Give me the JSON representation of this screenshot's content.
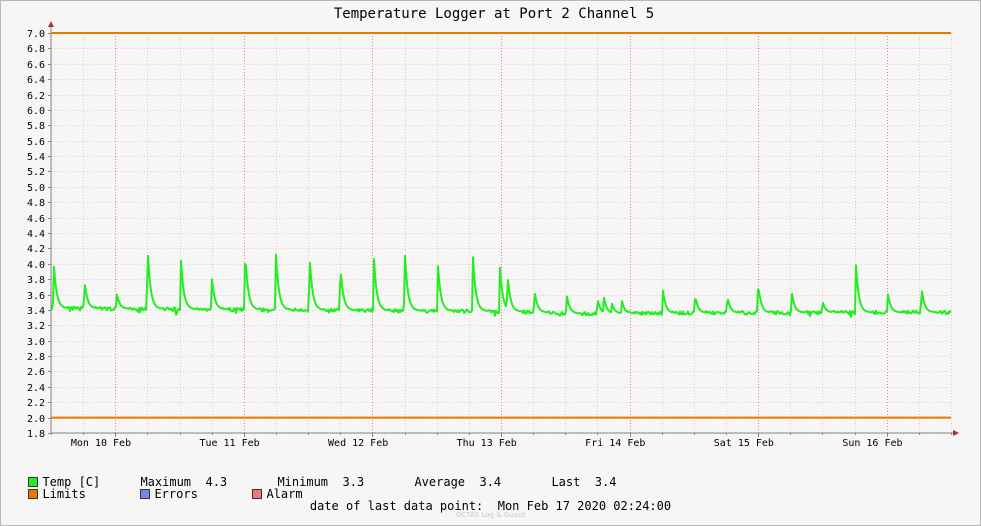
{
  "colors": {
    "temp": "#22ee22",
    "limits": "#ee7700",
    "errors": "#7788ee",
    "alarm": "#ee7777"
  },
  "chart_data": {
    "type": "line",
    "title": "Temperature Logger at Port 2 Channel 5",
    "xlabel": "",
    "ylabel": "",
    "ylim": [
      1.8,
      7.0
    ],
    "ytick_step": 0.2,
    "grid": true,
    "x_categories": [
      "Mon 10 Feb",
      "Tue 11 Feb",
      "Wed 12 Feb",
      "Thu 13 Feb",
      "Fri 14 Feb",
      "Sat 15 Feb",
      "Sun 16 Feb"
    ],
    "x_range_days": [
      0,
      7
    ],
    "limits": [
      {
        "name": "Limits",
        "value": 7.0
      },
      {
        "name": "Limits",
        "value": 2.0
      }
    ],
    "series": [
      {
        "name": "Temp [C]",
        "baseline_segments": [
          [
            0,
            3.42
          ],
          [
            2.7,
            3.39
          ],
          [
            3.5,
            3.38
          ],
          [
            4.1,
            3.35
          ],
          [
            5.0,
            3.36
          ],
          [
            7.0,
            3.37
          ]
        ],
        "peaks": [
          {
            "day": 0.02,
            "value": 4.05
          },
          {
            "day": 0.26,
            "value": 3.79
          },
          {
            "day": 0.51,
            "value": 3.63
          },
          {
            "day": 0.75,
            "value": 4.26
          },
          {
            "day": 1.01,
            "value": 4.07
          },
          {
            "day": 1.25,
            "value": 3.84
          },
          {
            "day": 1.51,
            "value": 4.17
          },
          {
            "day": 1.75,
            "value": 4.12
          },
          {
            "day": 2.01,
            "value": 4.15
          },
          {
            "day": 2.25,
            "value": 3.99
          },
          {
            "day": 2.51,
            "value": 4.13
          },
          {
            "day": 2.75,
            "value": 4.22
          },
          {
            "day": 3.01,
            "value": 3.97
          },
          {
            "day": 3.28,
            "value": 4.16
          },
          {
            "day": 3.49,
            "value": 4.01
          },
          {
            "day": 3.55,
            "value": 3.88
          },
          {
            "day": 3.76,
            "value": 3.66
          },
          {
            "day": 4.01,
            "value": 3.61
          },
          {
            "day": 4.25,
            "value": 3.55
          },
          {
            "day": 4.3,
            "value": 3.57
          },
          {
            "day": 4.36,
            "value": 3.5
          },
          {
            "day": 4.44,
            "value": 3.52
          },
          {
            "day": 4.76,
            "value": 3.65
          },
          {
            "day": 5.01,
            "value": 3.59
          },
          {
            "day": 5.26,
            "value": 3.58
          },
          {
            "day": 5.5,
            "value": 3.75
          },
          {
            "day": 5.76,
            "value": 3.65
          },
          {
            "day": 6.0,
            "value": 3.52
          },
          {
            "day": 6.26,
            "value": 4.01
          },
          {
            "day": 6.51,
            "value": 3.6
          },
          {
            "day": 6.77,
            "value": 3.7
          }
        ]
      }
    ]
  },
  "legend": {
    "temp_label": "Temp [C]",
    "maximum": "Maximum  4.3",
    "minimum": "Minimum  3.3",
    "average": "Average  3.4",
    "last": "Last  3.4",
    "limits_label": "Limits",
    "errors_label": "Errors",
    "alarm_label": "Alarm"
  },
  "footer": {
    "last_data_point": "date of last data point:  Mon Feb 17 2020 02:24:00",
    "watermark": "OCTAS Log & Guard"
  }
}
